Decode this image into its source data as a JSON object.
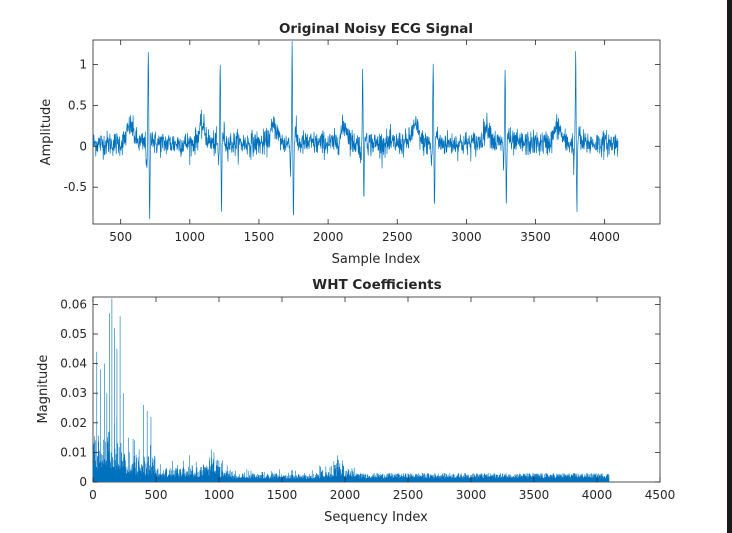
{
  "chart_data": [
    {
      "type": "line",
      "title": "Original Noisy ECG Signal",
      "xlabel": "Sample Index",
      "ylabel": "Amplitude",
      "xlim": [
        300,
        4400
      ],
      "ylim": [
        -0.95,
        1.3
      ],
      "xticks": [
        500,
        1000,
        1500,
        2000,
        2500,
        3000,
        3500,
        4000
      ],
      "xtick_labels": [
        "500",
        "1000",
        "1500",
        "2000",
        "2500",
        "3000",
        "3500",
        "4000"
      ],
      "yticks": [
        -0.5,
        0,
        0.5,
        1
      ],
      "ytick_labels": [
        "-0.5",
        "0",
        "0.5",
        "1"
      ],
      "grid": false,
      "color": "#0072bd",
      "series": [
        {
          "x_range": [
            300,
            4096
          ],
          "beat_r_peaks_x": [
            700,
            1220,
            1740,
            2250,
            2760,
            3280,
            3790
          ],
          "beat_r_peak_values": [
            1.1,
            0.98,
            1.17,
            1.0,
            1.0,
            0.95,
            1.02
          ],
          "beat_s_trough_values": [
            -0.93,
            -0.83,
            -0.93,
            -0.75,
            -0.8,
            -0.78,
            -0.85
          ],
          "t_wave_offset_x": -130,
          "t_wave_value": 0.35,
          "baseline": 0.0,
          "noise_band": [
            -0.15,
            0.25
          ]
        }
      ]
    },
    {
      "type": "bar",
      "title": "WHT Coefficients",
      "xlabel": "Sequency Index",
      "ylabel": "Magnitude",
      "xlim": [
        0,
        4500
      ],
      "ylim": [
        0,
        0.0625
      ],
      "xticks": [
        0,
        500,
        1000,
        1500,
        2000,
        2500,
        3000,
        3500,
        4000,
        4500
      ],
      "xtick_labels": [
        "0",
        "500",
        "1000",
        "1500",
        "2000",
        "2500",
        "3000",
        "3500",
        "4000",
        "4500"
      ],
      "yticks": [
        0,
        0.01,
        0.02,
        0.03,
        0.04,
        0.05,
        0.06
      ],
      "ytick_labels": [
        "0",
        "0.01",
        "0.02",
        "0.03",
        "0.04",
        "0.05",
        "0.06"
      ],
      "grid": false,
      "color": "#0072bd",
      "series": [
        {
          "x_range": [
            0,
            4096
          ],
          "peak_coefficients": [
            {
              "x": 30,
              "value": 0.044
            },
            {
              "x": 60,
              "value": 0.038
            },
            {
              "x": 90,
              "value": 0.04
            },
            {
              "x": 110,
              "value": 0.03
            },
            {
              "x": 130,
              "value": 0.057
            },
            {
              "x": 150,
              "value": 0.062
            },
            {
              "x": 170,
              "value": 0.052
            },
            {
              "x": 190,
              "value": 0.045
            },
            {
              "x": 215,
              "value": 0.056
            },
            {
              "x": 240,
              "value": 0.03
            },
            {
              "x": 280,
              "value": 0.015
            },
            {
              "x": 330,
              "value": 0.014
            },
            {
              "x": 400,
              "value": 0.026
            },
            {
              "x": 430,
              "value": 0.024
            },
            {
              "x": 460,
              "value": 0.022
            },
            {
              "x": 940,
              "value": 0.011
            },
            {
              "x": 960,
              "value": 0.01
            },
            {
              "x": 1940,
              "value": 0.009
            }
          ],
          "tail_level": 0.003
        }
      ]
    }
  ]
}
